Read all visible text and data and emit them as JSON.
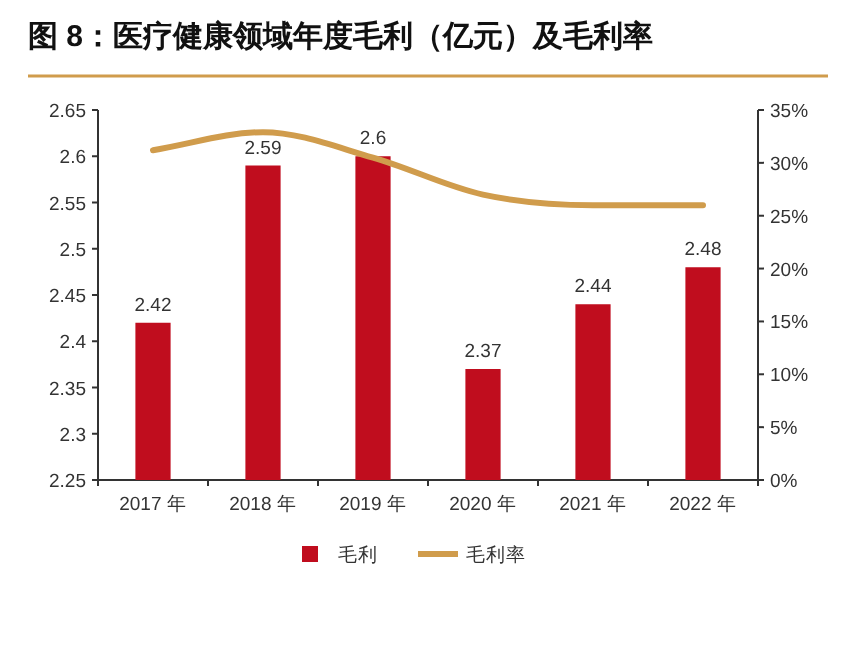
{
  "chart_data": {
    "type": "bar",
    "title": "图 8：医疗健康领域年度毛利（亿元）及毛利率",
    "categories": [
      "2017 年",
      "2018 年",
      "2019 年",
      "2020 年",
      "2021 年",
      "2022 年"
    ],
    "series": [
      {
        "name": "毛利",
        "color": "#c00d1e",
        "values": [
          2.42,
          2.59,
          2.6,
          2.37,
          2.44,
          2.48
        ],
        "value_labels": [
          "2.42",
          "2.59",
          "2.6",
          "2.37",
          "2.44",
          "2.48"
        ]
      },
      {
        "name": "毛利率",
        "type": "line",
        "axis": "y2",
        "color": "#d09c4c",
        "values": [
          31.2,
          32.9,
          30.5,
          27.0,
          26.0,
          26.0
        ]
      }
    ],
    "ylim": [
      2.25,
      2.65
    ],
    "yticks": [
      2.25,
      2.3,
      2.35,
      2.4,
      2.45,
      2.5,
      2.55,
      2.6,
      2.65
    ],
    "y2lim": [
      0,
      35
    ],
    "y2ticks": [
      {
        "value": 0,
        "label": "0%"
      },
      {
        "value": 5,
        "label": "5%"
      },
      {
        "value": 10,
        "label": "10%"
      },
      {
        "value": 15,
        "label": "15%"
      },
      {
        "value": 20,
        "label": "20%"
      },
      {
        "value": 25,
        "label": "25%"
      },
      {
        "value": 30,
        "label": "30%"
      },
      {
        "value": 35,
        "label": "35%"
      }
    ],
    "legend": "bottom",
    "grid": false
  }
}
